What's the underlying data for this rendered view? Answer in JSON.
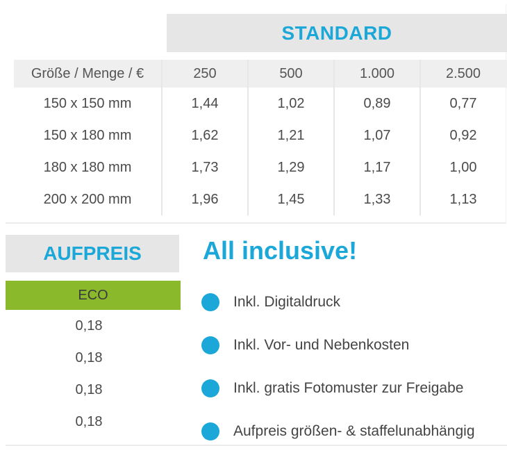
{
  "standard": {
    "title": "STANDARD",
    "columns": [
      "Größe / Menge / €",
      "250",
      "500",
      "1.000",
      "2.500"
    ],
    "rows": [
      [
        "150 x 150 mm",
        "1,44",
        "1,02",
        "0,89",
        "0,77"
      ],
      [
        "150 x 180 mm",
        "1,62",
        "1,21",
        "1,07",
        "0,92"
      ],
      [
        "180 x 180 mm",
        "1,73",
        "1,29",
        "1,17",
        "1,00"
      ],
      [
        "200 x 200 mm",
        "1,96",
        "1,45",
        "1,33",
        "1,13"
      ]
    ]
  },
  "aufpreis": {
    "title": "AUFPREIS",
    "eco_label": "ECO",
    "values": [
      "0,18",
      "0,18",
      "0,18",
      "0,18"
    ]
  },
  "inclusive": {
    "title": "All inclusive!",
    "items": [
      "Inkl. Digitaldruck",
      "Inkl. Vor- und Nebenkosten",
      "Inkl. gratis Fotomuster zur Freigabe",
      "Aufpreis größen- & staffelunabhängig"
    ]
  },
  "colors": {
    "accent_blue": "#1ba8d8",
    "eco_green": "#8ab92b",
    "header_gray": "#e6e6e6"
  }
}
